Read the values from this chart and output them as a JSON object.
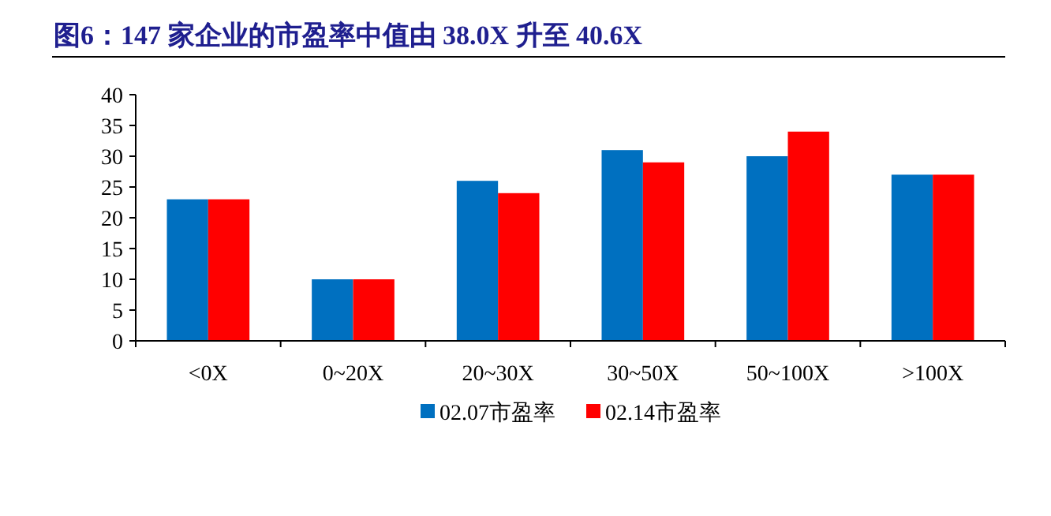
{
  "chart_data": {
    "type": "bar",
    "title": "图6：147 家企业的市盈率中值由 38.0X 升至 40.6X",
    "categories": [
      "<0X",
      "0~20X",
      "20~30X",
      "30~50X",
      "50~100X",
      ">100X"
    ],
    "series": [
      {
        "name": "02.07市盈率",
        "color": "#0070c0",
        "values": [
          23,
          10,
          26,
          31,
          30,
          27
        ]
      },
      {
        "name": "02.14市盈率",
        "color": "#ff0000",
        "values": [
          23,
          10,
          24,
          29,
          34,
          27
        ]
      }
    ],
    "ylim": [
      0,
      40
    ],
    "yticks": [
      0,
      5,
      10,
      15,
      20,
      25,
      30,
      35,
      40
    ],
    "grid": false,
    "legend": "bottom"
  }
}
